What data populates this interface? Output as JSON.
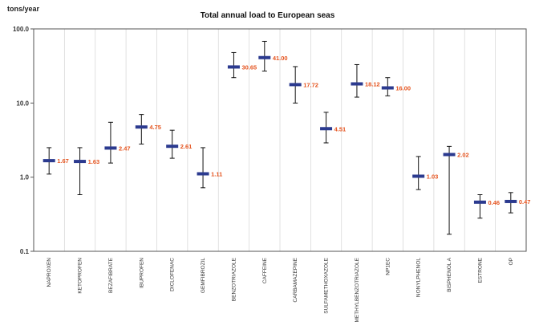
{
  "chart_data": {
    "type": "scatter",
    "title": "Total annual load to European seas",
    "ylabel": "tons/year",
    "xlabel": "",
    "yscale": "log",
    "ylim": [
      0.1,
      100.0
    ],
    "yticks": [
      "0.1",
      "1.0",
      "10.0",
      "100.0"
    ],
    "ytick_values": [
      0.1,
      1,
      10,
      100
    ],
    "grid": "vertical",
    "marker_color": "#2b3a8f",
    "label_color": "#e5541f",
    "whisker_color": "#111111",
    "categories": [
      "NAPROXEN",
      "KETOPROFEN",
      "BEZAFIBRATE",
      "IBUPROFEN",
      "DICLOFENAC",
      "GEMFIBROZIL",
      "BENZOTRIAZOLE",
      "CAFFEINE",
      "CARBAMAZEPINE",
      "SULFAMETHOXAZOLE",
      "METHYLBENZOTRIAZOLE",
      "NP1EC",
      "NONYLPHENOL",
      "BISPHENOL A",
      "ESTRONE",
      "OP"
    ],
    "values": [
      1.67,
      1.63,
      2.47,
      4.75,
      2.61,
      1.11,
      30.65,
      41.0,
      17.72,
      4.51,
      18.12,
      16.0,
      1.03,
      2.02,
      0.46,
      0.47
    ],
    "value_labels": [
      "1.67",
      "1.63",
      "2.47",
      "4.75",
      "2.61",
      "1.11",
      "30.65",
      "41.00",
      "17.72",
      "4.51",
      "18.12",
      "16.00",
      "1.03",
      "2.02",
      "0.46",
      "0.47"
    ],
    "upper": [
      2.5,
      2.5,
      5.5,
      7.0,
      4.3,
      2.5,
      48.0,
      68.0,
      31.0,
      7.5,
      33.0,
      22.0,
      1.9,
      2.6,
      0.58,
      0.62
    ],
    "lower": [
      1.1,
      0.58,
      1.55,
      2.8,
      1.8,
      0.72,
      22.0,
      27.0,
      10.0,
      2.9,
      12.0,
      12.5,
      0.68,
      0.17,
      0.28,
      0.33
    ]
  }
}
